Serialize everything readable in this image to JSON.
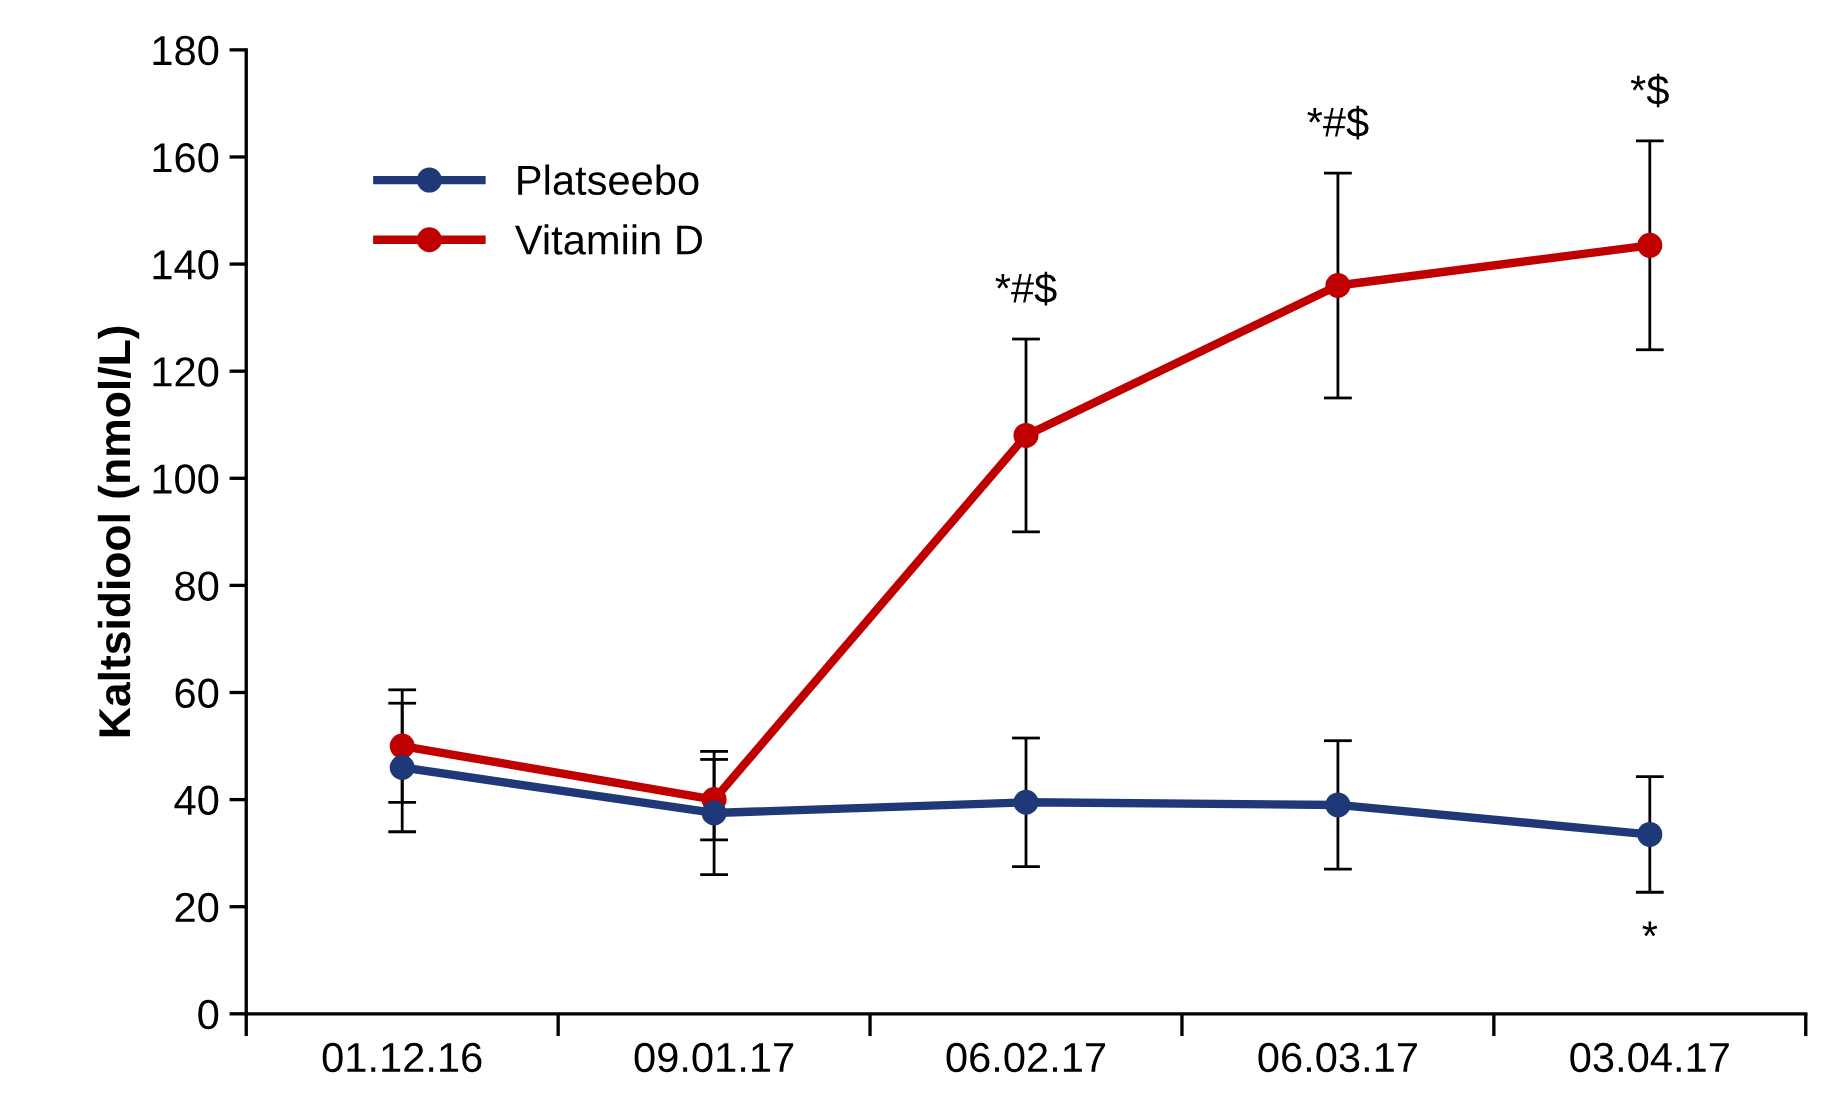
{
  "chart_data": {
    "type": "line",
    "ylabel": "Kaltsidiool (nmol/L)",
    "categories": [
      "01.12.16",
      "09.01.17",
      "06.02.17",
      "06.03.17",
      "03.04.17"
    ],
    "series": [
      {
        "name": "Platseebo",
        "color": "#1f3877",
        "values": [
          46,
          37.5,
          39.5,
          39,
          33.5
        ],
        "errors": [
          12,
          11.5,
          12,
          12,
          10.8
        ]
      },
      {
        "name": "Vitamiin D",
        "color": "#c00000",
        "values": [
          50,
          40,
          108,
          136,
          143.5
        ],
        "errors": [
          10.5,
          7.5,
          18,
          21,
          19.5
        ]
      }
    ],
    "ylim": [
      0,
      180
    ],
    "yticks": [
      0,
      20,
      40,
      60,
      80,
      100,
      120,
      140,
      160,
      180
    ],
    "annotations": [
      {
        "text": "*#$",
        "x": "06.02.17",
        "y": 126
      },
      {
        "text": "*#$",
        "x": "06.03.17",
        "y": 157
      },
      {
        "text": "*$",
        "x": "03.04.17",
        "y": 163
      },
      {
        "text": "*",
        "x": "03.04.17",
        "y": 22.7
      }
    ],
    "grid": false,
    "legend": "top left",
    "marker": "circle",
    "line_style": "solid"
  }
}
